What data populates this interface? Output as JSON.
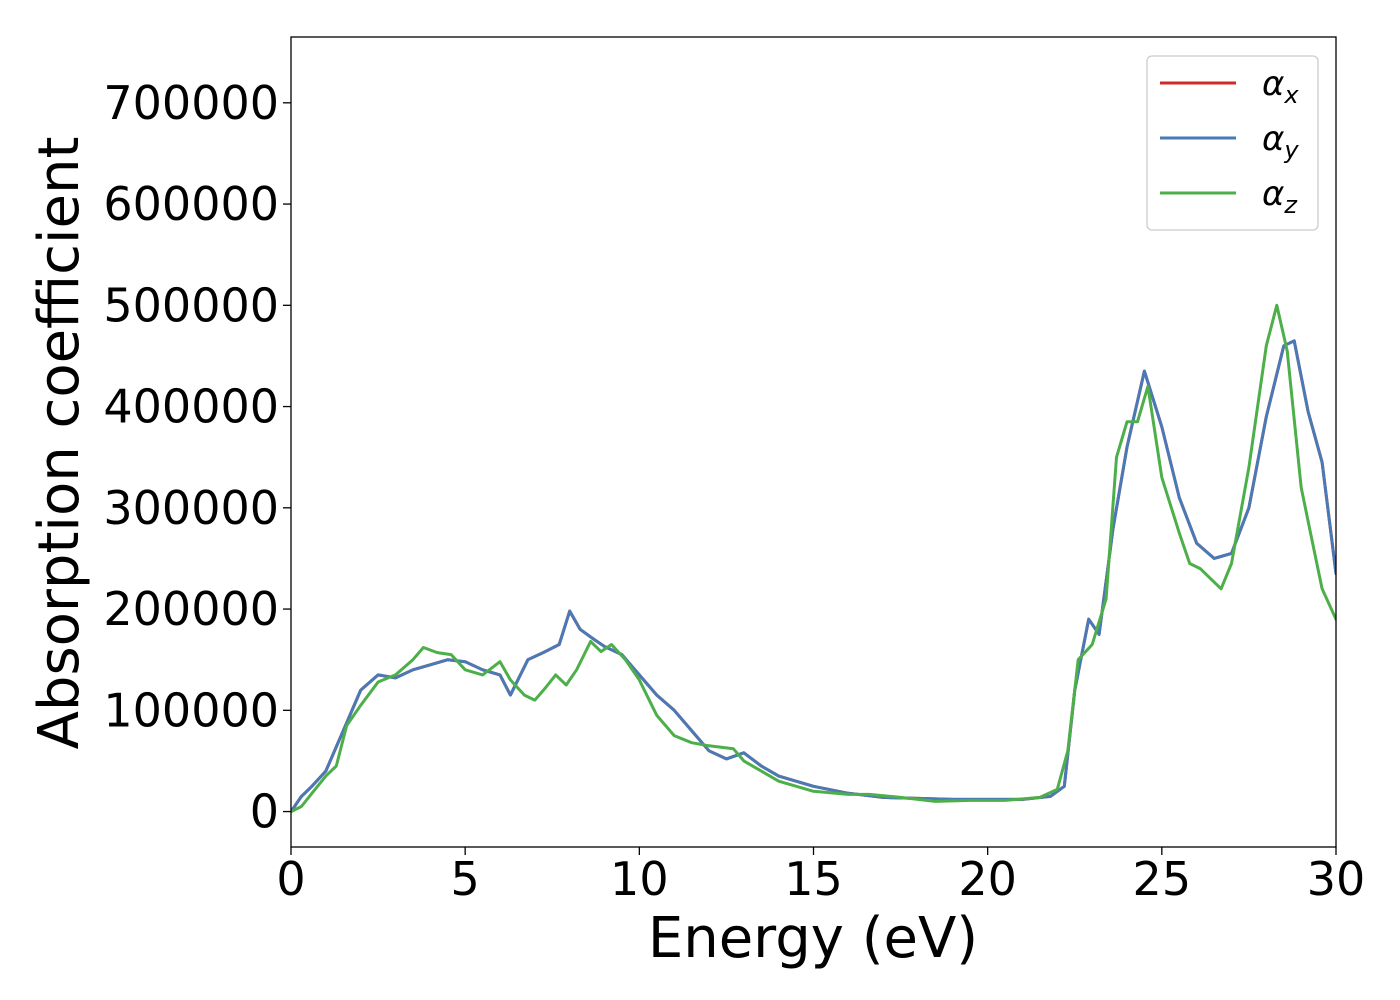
{
  "chart_data": {
    "type": "line",
    "title": "",
    "xlabel": "Energy (eV)",
    "ylabel": "Absorption coefficient",
    "xlim": [
      0,
      30
    ],
    "ylim": [
      -35000,
      765000
    ],
    "xticks": [
      0,
      5,
      10,
      15,
      20,
      25,
      30
    ],
    "xtick_labels": [
      "0",
      "5",
      "10",
      "15",
      "20",
      "25",
      "30"
    ],
    "yticks": [
      0,
      100000,
      200000,
      300000,
      400000,
      500000,
      600000,
      700000
    ],
    "ytick_labels": [
      "0",
      "100000",
      "200000",
      "300000",
      "400000",
      "500000",
      "600000",
      "700000"
    ],
    "grid": false,
    "legend_position": "top-right",
    "legend": [
      {
        "symbol": "α",
        "subscript": "x",
        "color": "#d62728"
      },
      {
        "symbol": "α",
        "subscript": "y",
        "color": "#4a7ab5"
      },
      {
        "symbol": "α",
        "subscript": "z",
        "color": "#4daf4a"
      }
    ],
    "series": [
      {
        "legend_index": 0,
        "color": "#d62728",
        "x": [
          0,
          0.3,
          0.6,
          1.0,
          1.5,
          2.0,
          2.5,
          3.0,
          3.5,
          4.0,
          4.5,
          5.0,
          5.5,
          6.0,
          6.3,
          6.8,
          7.3,
          7.7,
          8.0,
          8.3,
          8.7,
          9.0,
          9.5,
          10.0,
          10.5,
          11.0,
          11.5,
          12.0,
          12.5,
          13.0,
          13.5,
          14.0,
          14.5,
          15.0,
          16.0,
          17.0,
          18.0,
          19.0,
          20.0,
          21.0,
          21.8,
          22.2,
          22.5,
          22.9,
          23.2,
          23.6,
          24.0,
          24.5,
          25.0,
          25.5,
          26.0,
          26.5,
          27.0,
          27.5,
          28.0,
          28.5,
          28.8,
          29.2,
          29.6,
          30.0
        ],
        "y": [
          0,
          15000,
          25000,
          40000,
          80000,
          120000,
          135000,
          132000,
          140000,
          145000,
          150000,
          148000,
          140000,
          135000,
          115000,
          150000,
          158000,
          165000,
          198000,
          180000,
          170000,
          163000,
          155000,
          135000,
          115000,
          100000,
          80000,
          60000,
          52000,
          58000,
          45000,
          35000,
          30000,
          25000,
          18000,
          14000,
          13000,
          12000,
          12000,
          12000,
          15000,
          25000,
          120000,
          190000,
          175000,
          280000,
          360000,
          435000,
          380000,
          310000,
          265000,
          250000,
          255000,
          300000,
          390000,
          460000,
          465000,
          395000,
          345000,
          235000
        ]
      },
      {
        "legend_index": 1,
        "color": "#4a7ab5",
        "x": [
          0,
          0.3,
          0.6,
          1.0,
          1.5,
          2.0,
          2.5,
          3.0,
          3.5,
          4.0,
          4.5,
          5.0,
          5.5,
          6.0,
          6.3,
          6.8,
          7.3,
          7.7,
          8.0,
          8.3,
          8.7,
          9.0,
          9.5,
          10.0,
          10.5,
          11.0,
          11.5,
          12.0,
          12.5,
          13.0,
          13.5,
          14.0,
          14.5,
          15.0,
          16.0,
          17.0,
          18.0,
          19.0,
          20.0,
          21.0,
          21.8,
          22.2,
          22.5,
          22.9,
          23.2,
          23.6,
          24.0,
          24.5,
          25.0,
          25.5,
          26.0,
          26.5,
          27.0,
          27.5,
          28.0,
          28.5,
          28.8,
          29.2,
          29.6,
          30.0
        ],
        "y": [
          0,
          15000,
          25000,
          40000,
          80000,
          120000,
          135000,
          132000,
          140000,
          145000,
          150000,
          148000,
          140000,
          135000,
          115000,
          150000,
          158000,
          165000,
          198000,
          180000,
          170000,
          163000,
          155000,
          135000,
          115000,
          100000,
          80000,
          60000,
          52000,
          58000,
          45000,
          35000,
          30000,
          25000,
          18000,
          14000,
          13000,
          12000,
          12000,
          12000,
          15000,
          25000,
          120000,
          190000,
          175000,
          280000,
          360000,
          435000,
          380000,
          310000,
          265000,
          250000,
          255000,
          300000,
          390000,
          460000,
          465000,
          395000,
          345000,
          235000
        ]
      },
      {
        "legend_index": 2,
        "color": "#4daf4a",
        "x": [
          0,
          0.3,
          0.6,
          1.0,
          1.3,
          1.6,
          2.0,
          2.5,
          3.0,
          3.5,
          3.8,
          4.2,
          4.6,
          5.0,
          5.5,
          6.0,
          6.3,
          6.7,
          7.0,
          7.3,
          7.6,
          7.9,
          8.2,
          8.6,
          8.9,
          9.2,
          9.6,
          10.0,
          10.5,
          11.0,
          11.5,
          12.0,
          12.7,
          13.0,
          13.5,
          14.0,
          15.0,
          16.0,
          16.6,
          17.5,
          18.5,
          19.5,
          20.5,
          21.5,
          22.0,
          22.3,
          22.6,
          23.0,
          23.4,
          23.7,
          24.0,
          24.3,
          24.6,
          25.0,
          25.5,
          25.8,
          26.1,
          26.4,
          26.7,
          27.0,
          27.5,
          28.0,
          28.3,
          28.6,
          29.0,
          29.3,
          29.6,
          30.0
        ],
        "y": [
          0,
          5000,
          18000,
          35000,
          45000,
          85000,
          105000,
          128000,
          135000,
          150000,
          162000,
          157000,
          155000,
          140000,
          135000,
          148000,
          130000,
          115000,
          110000,
          122000,
          135000,
          125000,
          140000,
          168000,
          158000,
          165000,
          150000,
          130000,
          95000,
          75000,
          68000,
          65000,
          62000,
          50000,
          40000,
          30000,
          20000,
          17000,
          17000,
          14000,
          10000,
          11000,
          11000,
          14000,
          22000,
          60000,
          150000,
          165000,
          210000,
          350000,
          385000,
          385000,
          420000,
          330000,
          275000,
          245000,
          240000,
          230000,
          220000,
          245000,
          340000,
          460000,
          500000,
          455000,
          320000,
          270000,
          220000,
          190000
        ]
      }
    ]
  }
}
